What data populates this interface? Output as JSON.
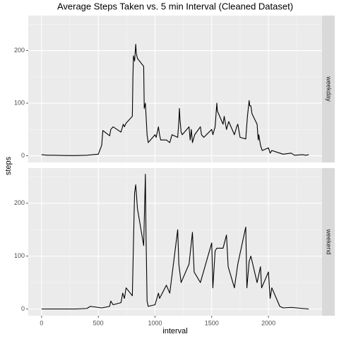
{
  "chart_data": {
    "type": "line",
    "title": "Average Steps Taken vs. 5 min Interval (Cleaned Dataset)",
    "x_label": "interval",
    "y_label": "steps",
    "xlim": [
      -117.75,
      2472.75
    ],
    "ylim": [
      -12.7,
      266.6
    ],
    "xticks": [
      0,
      500,
      1000,
      1500,
      2000
    ],
    "yticks": [
      0,
      100,
      200
    ],
    "x_minor_grid": [
      250,
      750,
      1250,
      1750,
      2250
    ],
    "y_minor_grid": [
      50,
      150,
      250
    ],
    "grid": true,
    "series": [
      {
        "name": "weekday",
        "color": "#000000",
        "x": [
          0,
          50,
          100,
          200,
          300,
          400,
          500,
          530,
          540,
          600,
          610,
          630,
          700,
          720,
          730,
          745,
          800,
          805,
          810,
          820,
          830,
          835,
          845,
          900,
          905,
          915,
          930,
          940,
          1000,
          1010,
          1030,
          1040,
          1050,
          1100,
          1130,
          1150,
          1200,
          1210,
          1215,
          1220,
          1230,
          1240,
          1300,
          1310,
          1320,
          1330,
          1350,
          1400,
          1410,
          1430,
          1500,
          1510,
          1530,
          1545,
          1550,
          1600,
          1610,
          1630,
          1650,
          1700,
          1720,
          1730,
          1750,
          1800,
          1815,
          1830,
          1835,
          1845,
          1855,
          1900,
          1910,
          1915,
          1930,
          1945,
          2000,
          2015,
          2030,
          2100,
          2130,
          2200,
          2230,
          2300,
          2330,
          2355
        ],
        "values": [
          2,
          1,
          1,
          0.5,
          0.3,
          1,
          3,
          20,
          48,
          38,
          50,
          55,
          45,
          60,
          55,
          62,
          75,
          150,
          190,
          180,
          212,
          195,
          185,
          170,
          90,
          100,
          40,
          25,
          40,
          35,
          55,
          40,
          30,
          30,
          25,
          40,
          35,
          65,
          90,
          70,
          45,
          40,
          55,
          30,
          50,
          25,
          40,
          55,
          40,
          35,
          50,
          40,
          55,
          100,
          85,
          60,
          75,
          50,
          65,
          40,
          55,
          60,
          35,
          32,
          75,
          105,
          95,
          95,
          80,
          60,
          30,
          40,
          20,
          10,
          15,
          5,
          10,
          5,
          3,
          5,
          1,
          2,
          1,
          2
        ]
      },
      {
        "name": "weekend",
        "color": "#000000",
        "x": [
          0,
          300,
          400,
          430,
          530,
          600,
          610,
          630,
          700,
          715,
          730,
          745,
          800,
          815,
          820,
          830,
          845,
          900,
          915,
          920,
          930,
          940,
          1000,
          1030,
          1040,
          1100,
          1130,
          1200,
          1210,
          1230,
          1300,
          1315,
          1330,
          1345,
          1400,
          1500,
          1510,
          1530,
          1545,
          1600,
          1630,
          1645,
          1700,
          1730,
          1745,
          1800,
          1810,
          1830,
          1845,
          1900,
          1930,
          1940,
          2000,
          2015,
          2030,
          2100,
          2130,
          2200,
          2300,
          2355
        ],
        "values": [
          0,
          0,
          1,
          5,
          2,
          5,
          15,
          8,
          12,
          30,
          20,
          40,
          25,
          175,
          220,
          235,
          190,
          120,
          255,
          150,
          15,
          5,
          8,
          30,
          20,
          45,
          30,
          150,
          85,
          50,
          85,
          115,
          145,
          70,
          50,
          125,
          40,
          110,
          115,
          115,
          140,
          80,
          40,
          85,
          100,
          155,
          40,
          90,
          100,
          50,
          80,
          40,
          70,
          20,
          40,
          5,
          2,
          3,
          1,
          0
        ]
      }
    ]
  }
}
